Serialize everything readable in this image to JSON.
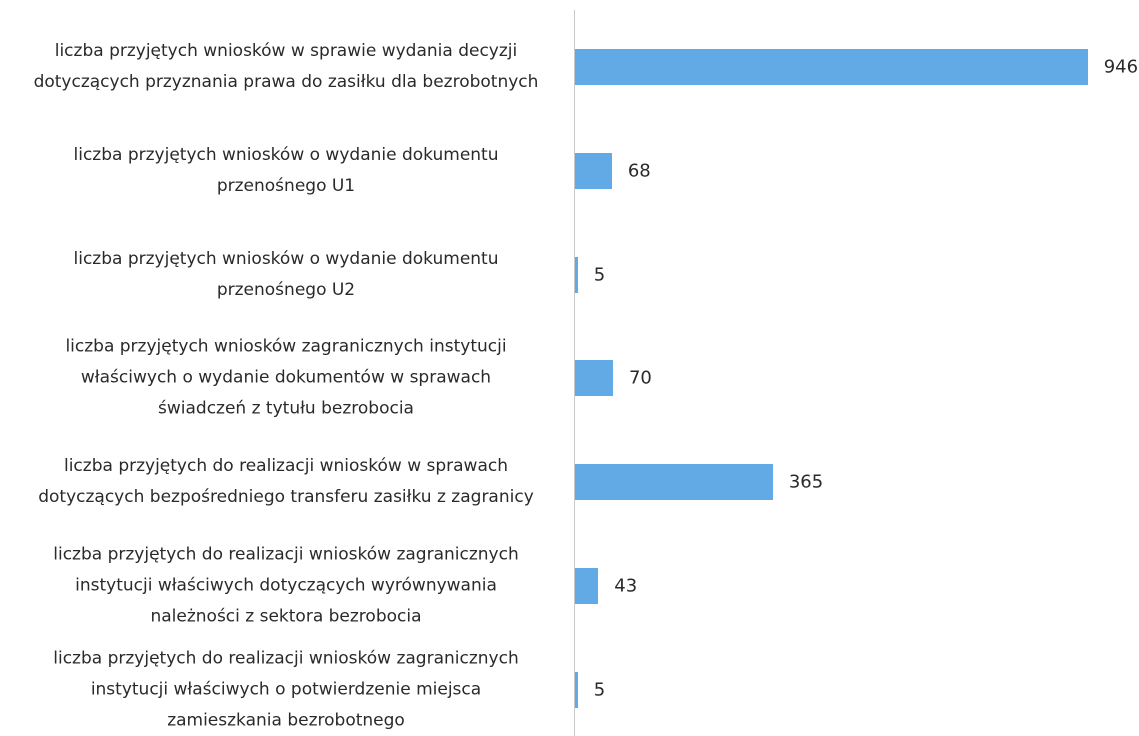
{
  "chart_data": {
    "type": "bar",
    "orientation": "horizontal",
    "color": "#62aae6",
    "categories": [
      "liczba przyjętych wniosków w sprawie wydania decyzji\ndotyczących przyznania prawa do zasiłku dla bezrobotnych",
      "liczba przyjętych wniosków o wydanie dokumentu\nprzenośnego U1",
      "liczba przyjętych wniosków o wydanie dokumentu\nprzenośnego U2",
      "liczba przyjętych wniosków zagranicznych instytucji\nwłaściwych o wydanie dokumentów w sprawach\nświadczeń z tytułu bezrobocia",
      "liczba przyjętych do realizacji wniosków w sprawach\ndotyczących bezpośredniego transferu zasiłku z zagranicy",
      "liczba przyjętych do realizacji wniosków zagranicznych\ninstytucji właściwych dotyczących wyrównywania\nnależności z sektora bezrobocia",
      "liczba przyjętych do realizacji wniosków zagranicznych\ninstytucji właściwych o potwierdzenie miejsca\nzamieszkania bezrobotnego"
    ],
    "values": [
      946,
      68,
      5,
      70,
      365,
      43,
      5
    ]
  }
}
